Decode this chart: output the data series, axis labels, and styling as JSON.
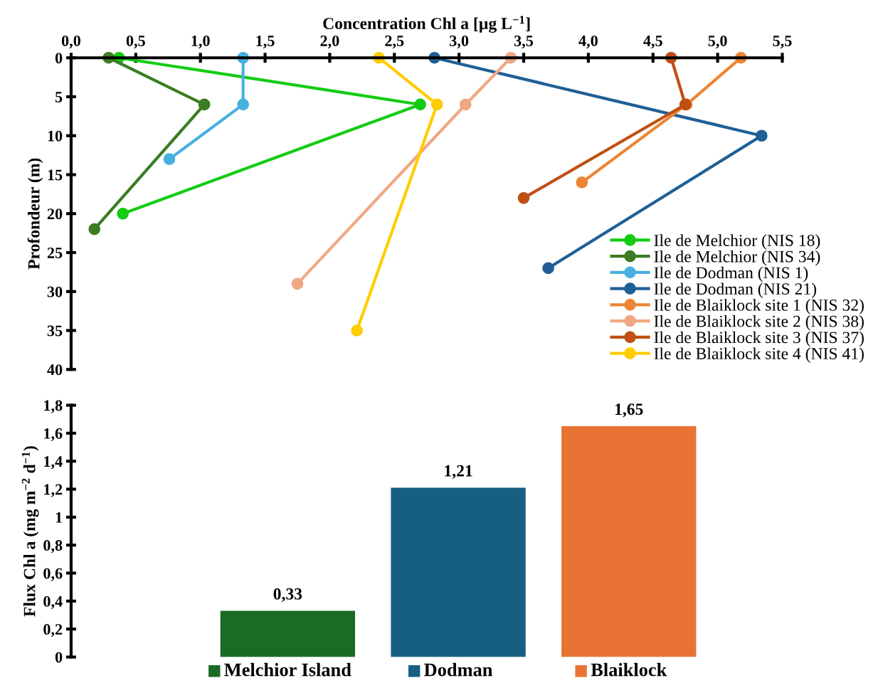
{
  "chart_data": [
    {
      "type": "line",
      "xlabel": "Concentration Chl a [µg L$^{−1}$]",
      "ylabel": "Profondeur (m)",
      "xlim": [
        0,
        5.5
      ],
      "xticks": [
        {
          "value": 0,
          "label": "0,0"
        },
        {
          "value": 0.5,
          "label": "0,5"
        },
        {
          "value": 1,
          "label": "1,0"
        },
        {
          "value": 1.5,
          "label": "1,5"
        },
        {
          "value": 2,
          "label": "2,0"
        },
        {
          "value": 2.5,
          "label": "2,5"
        },
        {
          "value": 3,
          "label": "3,0"
        },
        {
          "value": 3.5,
          "label": "3,5"
        },
        {
          "value": 4,
          "label": "4,0"
        },
        {
          "value": 4.5,
          "label": "4,5"
        },
        {
          "value": 5,
          "label": "5,0"
        },
        {
          "value": 5.5,
          "label": "5,5"
        }
      ],
      "ylim": [
        40,
        0
      ],
      "yticks": [
        0,
        5,
        10,
        15,
        20,
        25,
        30,
        35,
        40
      ],
      "marker": "circle",
      "line_style": "solid",
      "grid": false,
      "legend": "bottom right",
      "series": [
        {
          "name": "Ile de Melchior (NIS 18)",
          "color": "#14cc14",
          "x": [
            0.37,
            2.7,
            0.4
          ],
          "values": [
            0,
            6,
            20
          ]
        },
        {
          "name": "Ile de Melchior (NIS 34)",
          "color": "#3a7d22",
          "x": [
            0.29,
            1.03,
            0.18
          ],
          "values": [
            0,
            6,
            22
          ]
        },
        {
          "name": "Ile de Dodman (NIS 1)",
          "color": "#48b0e0",
          "x": [
            1.33,
            1.33,
            0.76
          ],
          "values": [
            0,
            6,
            13
          ]
        },
        {
          "name": "Ile de Dodman (NIS 21)",
          "color": "#1f5f96",
          "x": [
            2.81,
            5.34,
            3.69
          ],
          "values": [
            0,
            10,
            27
          ]
        },
        {
          "name": "Ile de Blaiklock site 1 (NIS 32)",
          "color": "#ec8534",
          "x": [
            5.18,
            4.76,
            3.95
          ],
          "values": [
            0,
            6,
            16
          ]
        },
        {
          "name": "Ile de Blaiklock site 2 (NIS 38)",
          "color": "#f0a882",
          "x": [
            3.4,
            3.05,
            1.75
          ],
          "values": [
            0,
            6,
            29
          ]
        },
        {
          "name": "Ile de Blaiklock site 3 (NIS 37)",
          "color": "#c04f14",
          "x": [
            4.64,
            4.75,
            3.5
          ],
          "values": [
            0,
            6,
            18
          ]
        },
        {
          "name": "Ile de Blaiklock site 4 (NIS 41)",
          "color": "#ffcc00",
          "x": [
            2.38,
            2.83,
            2.21
          ],
          "values": [
            0,
            6,
            35
          ]
        }
      ]
    },
    {
      "type": "bar",
      "ylabel": "Flux Chl a (mg m$^{−2}$ d$^{−1}$)",
      "categories": [
        "Melchior Island",
        "Dodman",
        "Blaiklock"
      ],
      "ylim": [
        0,
        1.8
      ],
      "yticks": [
        {
          "value": 0,
          "label": "0"
        },
        {
          "value": 0.2,
          "label": "0,2"
        },
        {
          "value": 0.4,
          "label": "0,4"
        },
        {
          "value": 0.6,
          "label": "0,6"
        },
        {
          "value": 0.8,
          "label": "0,8"
        },
        {
          "value": 1,
          "label": "1"
        },
        {
          "value": 1.2,
          "label": "1,2"
        },
        {
          "value": 1.4,
          "label": "1,4"
        },
        {
          "value": 1.6,
          "label": "1,6"
        },
        {
          "value": 1.8,
          "label": "1,8"
        }
      ],
      "value_labels": [
        "0,33",
        "1,21",
        "1,65"
      ],
      "grid": false,
      "values": [
        0.33,
        1.21,
        1.65
      ],
      "colors": [
        "#1b6b25",
        "#175f82",
        "#e87335"
      ]
    }
  ]
}
